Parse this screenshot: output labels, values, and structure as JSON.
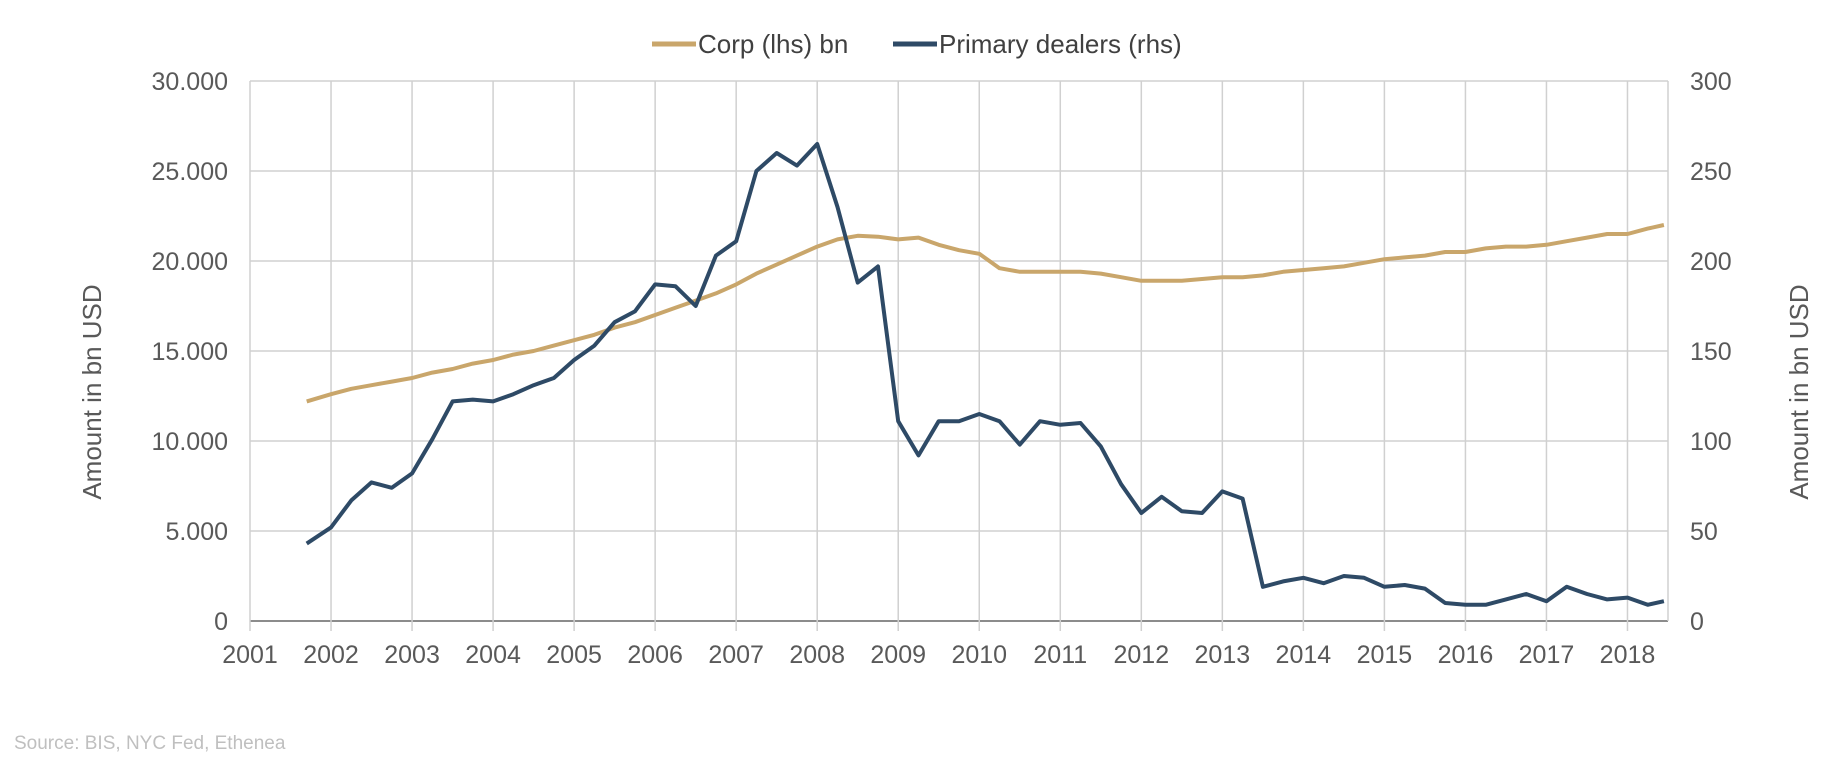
{
  "chart_data": {
    "type": "line",
    "legend_position": "top-center",
    "grid": true,
    "source": "Source: BIS, NYC Fed, Ethenea",
    "y_left": {
      "label": "Amount in bn USD",
      "range": [
        0,
        30000
      ],
      "ticks": [
        "0",
        "5.000",
        "10.000",
        "15.000",
        "20.000",
        "25.000",
        "30.000"
      ]
    },
    "y_right": {
      "label": "Amount in bn USD",
      "range": [
        0,
        300
      ],
      "ticks": [
        "0",
        "50",
        "100",
        "150",
        "200",
        "250",
        "300"
      ]
    },
    "x_axis": {
      "range": [
        2001,
        2018.5
      ],
      "ticks": [
        "2001",
        "2002",
        "2003",
        "2004",
        "2005",
        "2006",
        "2007",
        "2008",
        "2009",
        "2010",
        "2011",
        "2012",
        "2013",
        "2014",
        "2015",
        "2016",
        "2017",
        "2018"
      ]
    },
    "series": [
      {
        "name": "Corp (lhs) bn",
        "axis": "left",
        "color": "#C9A66B",
        "x": [
          2001.7,
          2002.0,
          2002.25,
          2002.5,
          2002.75,
          2003.0,
          2003.25,
          2003.5,
          2003.75,
          2004.0,
          2004.25,
          2004.5,
          2004.75,
          2005.0,
          2005.25,
          2005.5,
          2005.75,
          2006.0,
          2006.25,
          2006.5,
          2006.75,
          2007.0,
          2007.25,
          2007.5,
          2007.75,
          2008.0,
          2008.25,
          2008.5,
          2008.75,
          2009.0,
          2009.25,
          2009.5,
          2009.75,
          2010.0,
          2010.25,
          2010.5,
          2010.75,
          2011.0,
          2011.25,
          2011.5,
          2011.75,
          2012.0,
          2012.25,
          2012.5,
          2012.75,
          2013.0,
          2013.25,
          2013.5,
          2013.75,
          2014.0,
          2014.25,
          2014.5,
          2014.75,
          2015.0,
          2015.25,
          2015.5,
          2015.75,
          2016.0,
          2016.25,
          2016.5,
          2016.75,
          2017.0,
          2017.25,
          2017.5,
          2017.75,
          2018.0,
          2018.25,
          2018.45
        ],
        "values": [
          12200,
          12600,
          12900,
          13100,
          13300,
          13500,
          13800,
          14000,
          14300,
          14500,
          14800,
          15000,
          15300,
          15600,
          15900,
          16300,
          16600,
          17000,
          17400,
          17800,
          18200,
          18700,
          19300,
          19800,
          20300,
          20800,
          21200,
          21400,
          21350,
          21200,
          21300,
          20900,
          20600,
          20400,
          19600,
          19400,
          19400,
          19400,
          19400,
          19300,
          19100,
          18900,
          18900,
          18900,
          19000,
          19100,
          19100,
          19200,
          19400,
          19500,
          19600,
          19700,
          19900,
          20100,
          20200,
          20300,
          20500,
          20500,
          20700,
          20800,
          20800,
          20900,
          21100,
          21300,
          21500,
          21500,
          21800,
          22000
        ]
      },
      {
        "name": "Primary dealers (rhs)",
        "axis": "right",
        "color": "#2E4A66",
        "x": [
          2001.7,
          2002.0,
          2002.25,
          2002.5,
          2002.75,
          2003.0,
          2003.25,
          2003.5,
          2003.75,
          2004.0,
          2004.25,
          2004.5,
          2004.75,
          2005.0,
          2005.25,
          2005.5,
          2005.75,
          2006.0,
          2006.25,
          2006.5,
          2006.75,
          2007.0,
          2007.25,
          2007.5,
          2007.75,
          2008.0,
          2008.25,
          2008.5,
          2008.75,
          2009.0,
          2009.25,
          2009.5,
          2009.75,
          2010.0,
          2010.25,
          2010.5,
          2010.75,
          2011.0,
          2011.25,
          2011.5,
          2011.75,
          2012.0,
          2012.25,
          2012.5,
          2012.75,
          2013.0,
          2013.25,
          2013.5,
          2013.75,
          2014.0,
          2014.25,
          2014.5,
          2014.75,
          2015.0,
          2015.25,
          2015.5,
          2015.75,
          2016.0,
          2016.25,
          2016.5,
          2016.75,
          2017.0,
          2017.25,
          2017.5,
          2017.75,
          2018.0,
          2018.25,
          2018.45
        ],
        "values": [
          43,
          52,
          67,
          77,
          74,
          82,
          101,
          122,
          123,
          122,
          126,
          131,
          135,
          145,
          153,
          166,
          172,
          187,
          186,
          175,
          203,
          211,
          250,
          260,
          253,
          265,
          230,
          188,
          197,
          111,
          92,
          111,
          111,
          115,
          111,
          98,
          111,
          109,
          110,
          97,
          76,
          60,
          69,
          61,
          60,
          72,
          68,
          19,
          22,
          24,
          21,
          25,
          24,
          19,
          20,
          18,
          10,
          9,
          9,
          12,
          15,
          11,
          19,
          15,
          12,
          13,
          9,
          11
        ]
      }
    ]
  }
}
